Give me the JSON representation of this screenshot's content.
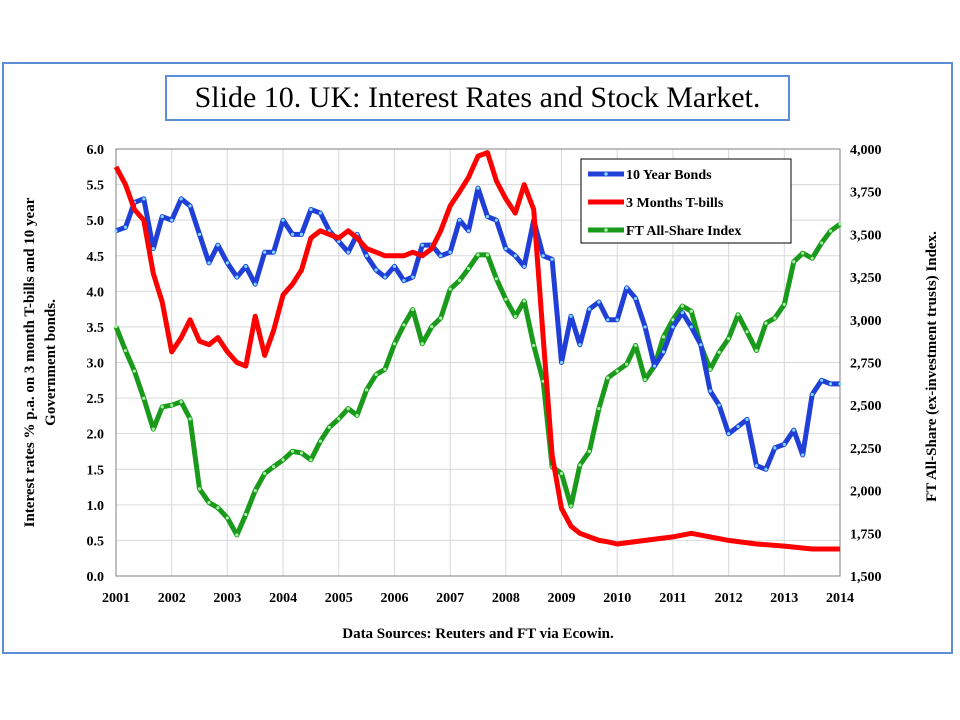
{
  "slide": {
    "title": "Slide 10. UK: Interest Rates and Stock Market."
  },
  "colors": {
    "bonds": "#1f3fd6",
    "tbills": "#ff0000",
    "ftas": "#1a9a1a",
    "frame": "#5b8ed6"
  },
  "chart_data": {
    "type": "line",
    "title": "Slide 10. UK: Interest Rates and Stock Market.",
    "xlabel": "Data Sources: Reuters and FT via Ecowin.",
    "ylabel": "Interest rates % p.a. on 3 month T-bills and 10 year Government bonds.",
    "y2label": "FT All-Share (ex-investment trusts) Index.",
    "x_ticks": [
      "2001",
      "2002",
      "2003",
      "2004",
      "2005",
      "2006",
      "2007",
      "2008",
      "2009",
      "2010",
      "2011",
      "2012",
      "2013",
      "2014"
    ],
    "xlim": [
      2001,
      2014
    ],
    "ylim": [
      0,
      6
    ],
    "y_ticks": [
      "0.0",
      "0.5",
      "1.0",
      "1.5",
      "2.0",
      "2.5",
      "3.0",
      "3.5",
      "4.0",
      "4.5",
      "5.0",
      "5.5",
      "6.0"
    ],
    "y2lim": [
      1500,
      4000
    ],
    "y2_ticks": [
      "1,500",
      "1,750",
      "2,000",
      "2,250",
      "2,500",
      "2,750",
      "3,000",
      "3,250",
      "3,500",
      "3,750",
      "4,000"
    ],
    "grid": true,
    "legend_position": "top-right",
    "series": [
      {
        "name": "10 Year Bonds",
        "axis": "left",
        "x": [
          2001.0,
          2001.17,
          2001.33,
          2001.5,
          2001.67,
          2001.83,
          2002.0,
          2002.17,
          2002.33,
          2002.5,
          2002.67,
          2002.83,
          2003.0,
          2003.17,
          2003.33,
          2003.5,
          2003.67,
          2003.83,
          2004.0,
          2004.17,
          2004.33,
          2004.5,
          2004.67,
          2004.83,
          2005.0,
          2005.17,
          2005.33,
          2005.5,
          2005.67,
          2005.83,
          2006.0,
          2006.17,
          2006.33,
          2006.5,
          2006.67,
          2006.83,
          2007.0,
          2007.17,
          2007.33,
          2007.5,
          2007.67,
          2007.83,
          2008.0,
          2008.17,
          2008.33,
          2008.5,
          2008.67,
          2008.83,
          2009.0,
          2009.17,
          2009.33,
          2009.5,
          2009.67,
          2009.83,
          2010.0,
          2010.17,
          2010.33,
          2010.5,
          2010.67,
          2010.83,
          2011.0,
          2011.17,
          2011.33,
          2011.5,
          2011.67,
          2011.83,
          2012.0,
          2012.17,
          2012.33,
          2012.5,
          2012.67,
          2012.83,
          2013.0,
          2013.17,
          2013.33,
          2013.5,
          2013.67,
          2013.83,
          2014.0
        ],
        "values": [
          4.85,
          4.9,
          5.25,
          5.3,
          4.6,
          5.05,
          5.0,
          5.3,
          5.2,
          4.8,
          4.4,
          4.65,
          4.4,
          4.2,
          4.35,
          4.1,
          4.55,
          4.55,
          5.0,
          4.8,
          4.8,
          5.15,
          5.1,
          4.85,
          4.7,
          4.55,
          4.8,
          4.5,
          4.3,
          4.2,
          4.35,
          4.15,
          4.2,
          4.65,
          4.65,
          4.5,
          4.55,
          5.0,
          4.85,
          5.45,
          5.05,
          5.0,
          4.6,
          4.5,
          4.35,
          5.0,
          4.5,
          4.45,
          3.0,
          3.65,
          3.25,
          3.75,
          3.85,
          3.6,
          3.6,
          4.05,
          3.9,
          3.5,
          2.95,
          3.15,
          3.5,
          3.7,
          3.5,
          3.25,
          2.6,
          2.4,
          2.0,
          2.1,
          2.2,
          1.55,
          1.5,
          1.8,
          1.85,
          2.05,
          1.7,
          2.55,
          2.75,
          2.7,
          2.7
        ]
      },
      {
        "name": "3 Months T-bills",
        "axis": "left",
        "x": [
          2001.0,
          2001.17,
          2001.33,
          2001.5,
          2001.67,
          2001.83,
          2002.0,
          2002.17,
          2002.33,
          2002.5,
          2002.67,
          2002.83,
          2003.0,
          2003.17,
          2003.33,
          2003.5,
          2003.67,
          2003.83,
          2004.0,
          2004.17,
          2004.33,
          2004.5,
          2004.67,
          2004.83,
          2005.0,
          2005.17,
          2005.33,
          2005.5,
          2005.67,
          2005.83,
          2006.0,
          2006.17,
          2006.33,
          2006.5,
          2006.67,
          2006.83,
          2007.0,
          2007.17,
          2007.33,
          2007.5,
          2007.67,
          2007.83,
          2008.0,
          2008.17,
          2008.33,
          2008.5,
          2008.67,
          2008.83,
          2009.0,
          2009.17,
          2009.33,
          2009.5,
          2009.67,
          2009.83,
          2010.0,
          2010.5,
          2011.0,
          2011.33,
          2011.67,
          2012.0,
          2012.5,
          2013.0,
          2013.5,
          2014.0
        ],
        "values": [
          5.75,
          5.5,
          5.15,
          5.0,
          4.25,
          3.85,
          3.15,
          3.35,
          3.6,
          3.3,
          3.25,
          3.35,
          3.15,
          3.0,
          2.95,
          3.65,
          3.1,
          3.45,
          3.95,
          4.1,
          4.3,
          4.75,
          4.85,
          4.8,
          4.75,
          4.85,
          4.75,
          4.6,
          4.55,
          4.5,
          4.5,
          4.5,
          4.55,
          4.5,
          4.6,
          4.85,
          5.2,
          5.4,
          5.6,
          5.9,
          5.95,
          5.55,
          5.3,
          5.1,
          5.5,
          5.15,
          3.35,
          1.7,
          0.95,
          0.7,
          0.6,
          0.55,
          0.5,
          0.48,
          0.45,
          0.5,
          0.55,
          0.6,
          0.55,
          0.5,
          0.45,
          0.42,
          0.38,
          0.38
        ]
      },
      {
        "name": "FT All-Share Index",
        "axis": "right",
        "x": [
          2001.0,
          2001.17,
          2001.33,
          2001.5,
          2001.67,
          2001.83,
          2002.0,
          2002.17,
          2002.33,
          2002.5,
          2002.67,
          2002.83,
          2003.0,
          2003.17,
          2003.33,
          2003.5,
          2003.67,
          2003.83,
          2004.0,
          2004.17,
          2004.33,
          2004.5,
          2004.67,
          2004.83,
          2005.0,
          2005.17,
          2005.33,
          2005.5,
          2005.67,
          2005.83,
          2006.0,
          2006.17,
          2006.33,
          2006.5,
          2006.67,
          2006.83,
          2007.0,
          2007.17,
          2007.33,
          2007.5,
          2007.67,
          2007.83,
          2008.0,
          2008.17,
          2008.33,
          2008.5,
          2008.67,
          2008.83,
          2009.0,
          2009.17,
          2009.33,
          2009.5,
          2009.67,
          2009.83,
          2010.0,
          2010.17,
          2010.33,
          2010.5,
          2010.67,
          2010.83,
          2011.0,
          2011.17,
          2011.33,
          2011.5,
          2011.67,
          2011.83,
          2012.0,
          2012.17,
          2012.33,
          2012.5,
          2012.67,
          2012.83,
          2013.0,
          2013.17,
          2013.33,
          2013.5,
          2013.67,
          2013.83,
          2014.0
        ],
        "values": [
          2960,
          2820,
          2700,
          2540,
          2360,
          2490,
          2500,
          2520,
          2420,
          2010,
          1930,
          1900,
          1840,
          1740,
          1860,
          2000,
          2100,
          2140,
          2180,
          2230,
          2220,
          2180,
          2290,
          2370,
          2420,
          2480,
          2440,
          2590,
          2680,
          2710,
          2860,
          2970,
          3060,
          2860,
          2960,
          3010,
          3180,
          3230,
          3300,
          3380,
          3380,
          3240,
          3120,
          3020,
          3110,
          2850,
          2640,
          2140,
          2100,
          1910,
          2150,
          2230,
          2480,
          2660,
          2700,
          2740,
          2850,
          2650,
          2730,
          2900,
          3000,
          3080,
          3050,
          2850,
          2710,
          2810,
          2890,
          3030,
          2930,
          2820,
          2980,
          3010,
          3090,
          3340,
          3390,
          3360,
          3450,
          3520,
          3560
        ]
      }
    ]
  }
}
